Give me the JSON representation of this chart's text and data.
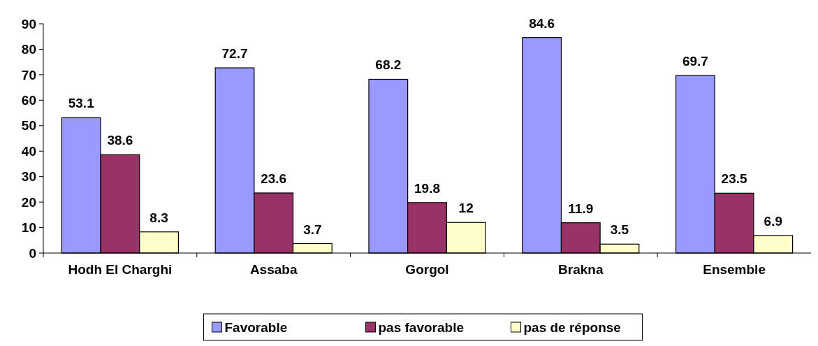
{
  "chart_data": {
    "type": "bar",
    "categories": [
      "Hodh El Charghi",
      "Assaba",
      "Gorgol",
      "Brakna",
      "Ensemble"
    ],
    "series": [
      {
        "name": "Favorable",
        "color": "#9999ff",
        "values": [
          53.1,
          72.7,
          68.2,
          84.6,
          69.7
        ]
      },
      {
        "name": "pas favorable",
        "color": "#993366",
        "values": [
          38.6,
          23.6,
          19.8,
          11.9,
          23.5
        ]
      },
      {
        "name": "pas de réponse",
        "color": "#ffffcc",
        "values": [
          8.3,
          3.7,
          12,
          3.5,
          6.9
        ]
      }
    ],
    "ylim": [
      0,
      90
    ],
    "yticks": [
      0,
      10,
      20,
      30,
      40,
      50,
      60,
      70,
      80,
      90
    ],
    "grid": false,
    "legend": "bottom",
    "data_labels": true
  }
}
